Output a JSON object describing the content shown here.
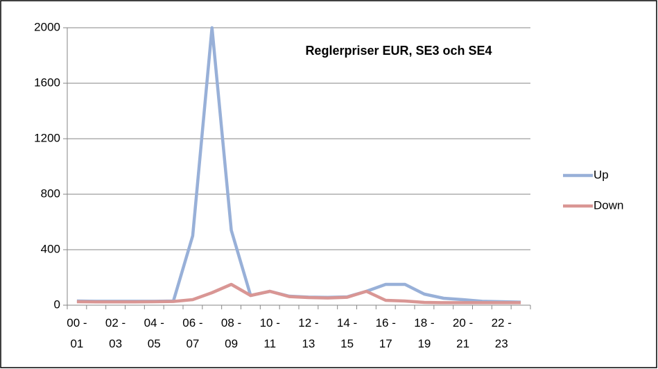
{
  "chart_data": {
    "type": "line",
    "title": "Reglerpriser EUR, SE3 och SE4",
    "categories": [
      "00 - 01",
      null,
      "02 - 03",
      null,
      "04 - 05",
      null,
      "06 - 07",
      null,
      "08 - 09",
      null,
      "10 - 11",
      null,
      "12 - 13",
      null,
      "14 - 15",
      null,
      "16 - 17",
      null,
      "18 - 19",
      null,
      "20 - 21",
      null,
      "22 - 23",
      null
    ],
    "series": [
      {
        "name": "Up",
        "color": "#98b0d8",
        "values": [
          30,
          28,
          28,
          28,
          28,
          30,
          500,
          2000,
          540,
          70,
          100,
          65,
          58,
          56,
          60,
          100,
          150,
          150,
          80,
          50,
          40,
          28,
          25,
          22
        ]
      },
      {
        "name": "Down",
        "color": "#d99694",
        "values": [
          25,
          24,
          24,
          24,
          25,
          27,
          40,
          90,
          150,
          70,
          100,
          62,
          55,
          52,
          57,
          100,
          35,
          30,
          20,
          18,
          18,
          18,
          18,
          18
        ]
      }
    ],
    "ylim": [
      0,
      2000
    ],
    "yticks": [
      0,
      400,
      800,
      1200,
      1600,
      2000
    ],
    "grid": true,
    "legend": "right"
  }
}
